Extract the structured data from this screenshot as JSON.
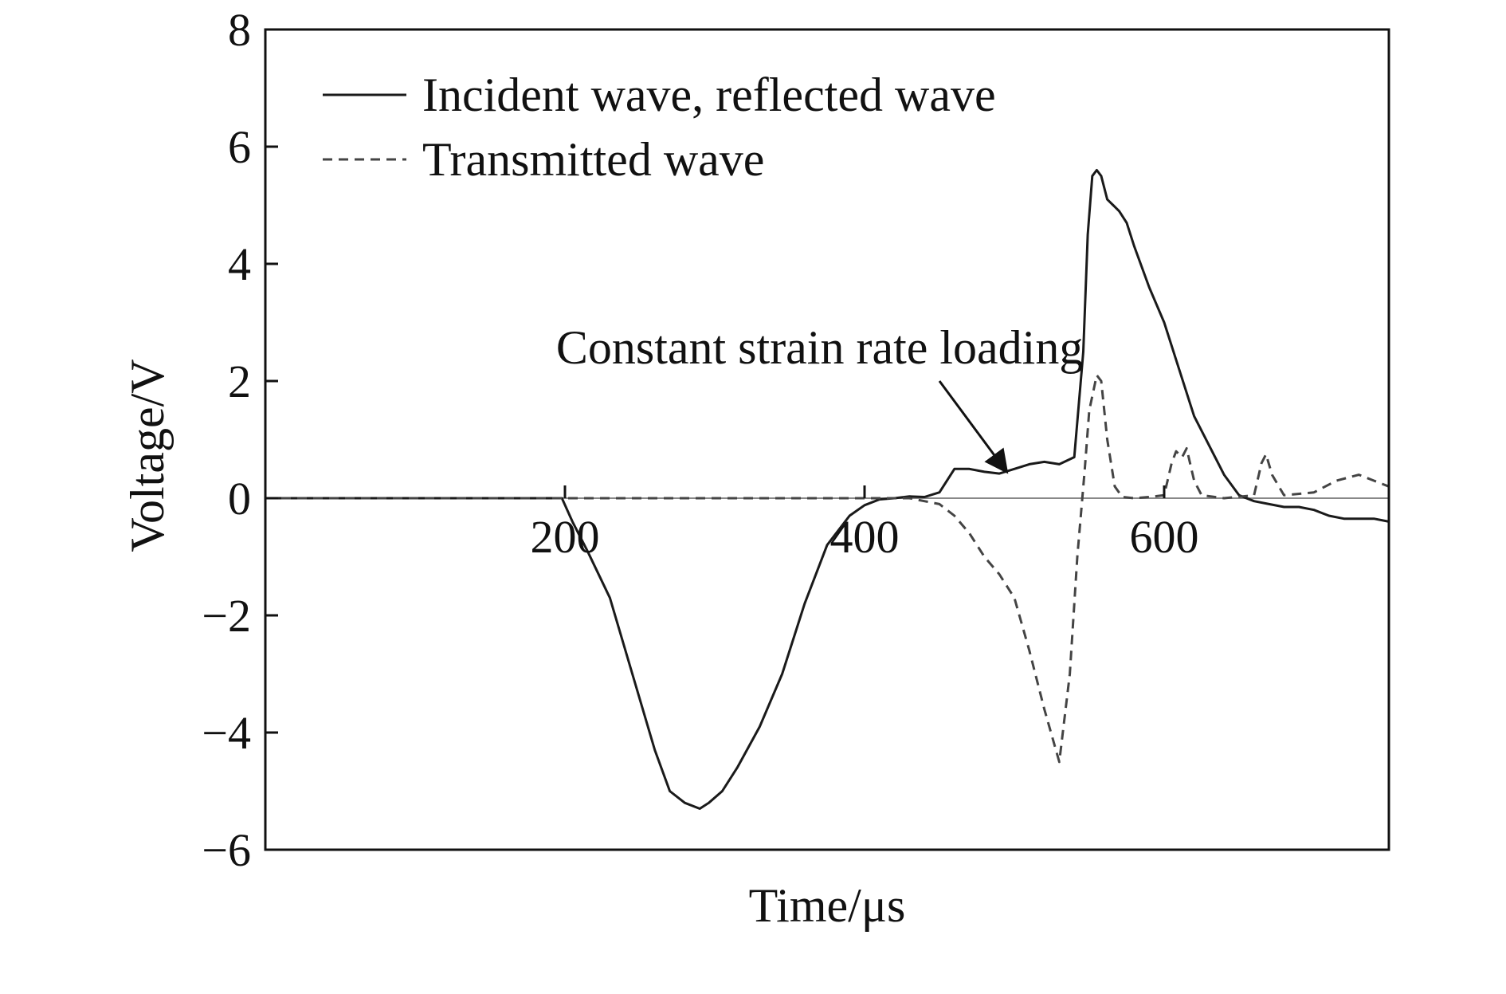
{
  "chart_data": {
    "type": "line",
    "xlabel": "Time/μs",
    "ylabel": "Voltage/V",
    "xlim": [
      0,
      750
    ],
    "ylim": [
      -6,
      8
    ],
    "xticks": [
      200,
      400,
      600
    ],
    "xtick_labels": [
      "200",
      "400",
      "600"
    ],
    "yticks": [
      -6,
      -4,
      -2,
      0,
      2,
      4,
      6,
      8
    ],
    "ytick_labels": [
      "−6",
      "−4",
      "−2",
      "0",
      "2",
      "4",
      "6",
      "8"
    ],
    "grid": false,
    "legend_position": "top-left",
    "zero_line": true,
    "series": [
      {
        "name": "Incident wave, reflected wave",
        "style": "solid",
        "color": "#1a1a1a",
        "x": [
          0,
          100,
          190,
          198,
          205,
          215,
          230,
          245,
          260,
          270,
          280,
          290,
          296,
          305,
          315,
          330,
          345,
          360,
          375,
          390,
          400,
          410,
          420,
          430,
          440,
          450,
          460,
          470,
          480,
          490,
          500,
          510,
          520,
          530,
          540,
          546,
          549,
          552,
          555,
          558,
          562,
          566,
          570,
          575,
          580,
          590,
          600,
          610,
          620,
          630,
          640,
          650,
          660,
          670,
          680,
          690,
          700,
          710,
          720,
          730,
          740,
          750
        ],
        "y": [
          0,
          0,
          0,
          0,
          -0.4,
          -0.9,
          -1.7,
          -3.0,
          -4.3,
          -5.0,
          -5.2,
          -5.3,
          -5.2,
          -5.0,
          -4.6,
          -3.9,
          -3.0,
          -1.8,
          -0.8,
          -0.3,
          -0.12,
          -0.02,
          0,
          0.03,
          0.02,
          0.1,
          0.5,
          0.5,
          0.45,
          0.42,
          0.5,
          0.58,
          0.62,
          0.58,
          0.7,
          2.5,
          4.5,
          5.5,
          5.6,
          5.5,
          5.1,
          5.0,
          4.9,
          4.7,
          4.3,
          3.6,
          3.0,
          2.2,
          1.4,
          0.9,
          0.4,
          0.05,
          -0.05,
          -0.1,
          -0.15,
          -0.15,
          -0.2,
          -0.3,
          -0.35,
          -0.35,
          -0.35,
          -0.4
        ]
      },
      {
        "name": "Transmitted wave",
        "style": "dashed",
        "color": "#444444",
        "x": [
          0,
          430,
          450,
          460,
          470,
          480,
          490,
          500,
          510,
          520,
          530,
          537,
          542,
          547,
          550,
          555,
          558,
          562,
          567,
          572,
          580,
          590,
          600,
          605,
          608,
          612,
          615,
          620,
          625,
          640,
          660,
          665,
          668,
          672,
          680,
          700,
          715,
          730,
          740,
          750
        ],
        "y": [
          0,
          0,
          -0.1,
          -0.3,
          -0.6,
          -1.0,
          -1.3,
          -1.7,
          -2.6,
          -3.6,
          -4.5,
          -3.0,
          -1.0,
          0.5,
          1.5,
          2.1,
          2.0,
          1.0,
          0.2,
          0.02,
          0,
          0.02,
          0.05,
          0.6,
          0.8,
          0.7,
          0.85,
          0.3,
          0.05,
          0.0,
          0.05,
          0.6,
          0.75,
          0.4,
          0.05,
          0.1,
          0.3,
          0.4,
          0.3,
          0.2
        ]
      }
    ],
    "annotations": [
      {
        "text": "Constant strain rate loading",
        "text_at": [
          370,
          2.3
        ],
        "arrow_from": [
          450,
          2.0
        ],
        "arrow_to": [
          494,
          0.48
        ]
      }
    ]
  }
}
